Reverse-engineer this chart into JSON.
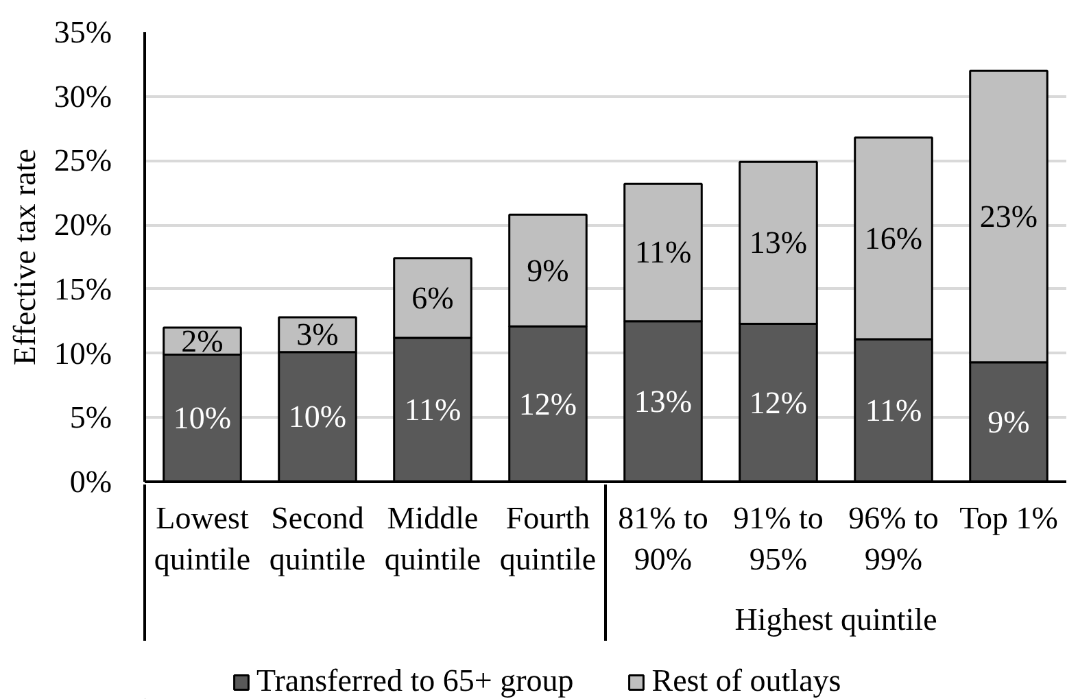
{
  "chart_data": {
    "type": "bar",
    "stacked": true,
    "ylabel": "Effective tax rate",
    "categories": [
      "Lowest quintile",
      "Second quintile",
      "Middle quintile",
      "Fourth quintile",
      "81% to 90%",
      "91% to 95%",
      "96% to 99%",
      "Top 1%"
    ],
    "series": [
      {
        "name": "Transferred to 65+ group",
        "color": "#595959",
        "values": [
          9.9,
          10.1,
          11.2,
          12.1,
          12.5,
          12.3,
          11.1,
          9.3
        ],
        "value_labels": [
          "10%",
          "10%",
          "11%",
          "12%",
          "13%",
          "12%",
          "11%",
          "9%"
        ]
      },
      {
        "name": "Rest of outlays",
        "color": "#bfbfbf",
        "values": [
          2.1,
          2.7,
          6.2,
          8.7,
          10.7,
          12.6,
          15.7,
          22.7
        ],
        "value_labels": [
          "2%",
          "3%",
          "6%",
          "9%",
          "11%",
          "13%",
          "16%",
          "23%"
        ]
      }
    ],
    "ylim": [
      0,
      35
    ],
    "yticks": [
      {
        "value": 0,
        "label": "0%"
      },
      {
        "value": 5,
        "label": "5%"
      },
      {
        "value": 10,
        "label": "10%"
      },
      {
        "value": 15,
        "label": "15%"
      },
      {
        "value": 20,
        "label": "20%"
      },
      {
        "value": 25,
        "label": "25%"
      },
      {
        "value": 30,
        "label": "30%"
      },
      {
        "value": 35,
        "label": "35%"
      }
    ],
    "grid": "y",
    "legend": "bottom",
    "annotations": [
      "Highest quintile"
    ]
  }
}
